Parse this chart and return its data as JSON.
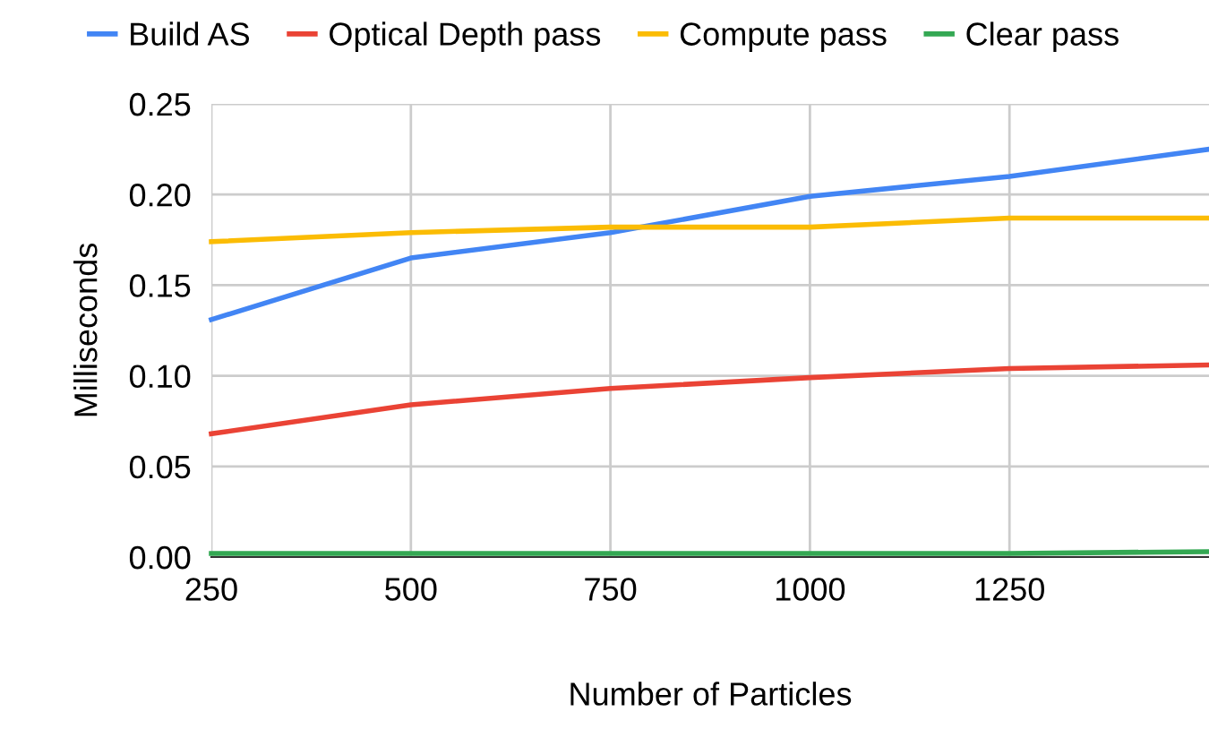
{
  "chart_data": {
    "type": "line",
    "xlabel": "Number of Particles",
    "ylabel": "Milliseconds",
    "x": [
      250,
      500,
      750,
      1000,
      1250,
      1500
    ],
    "series": [
      {
        "name": "Build AS",
        "color": "#4285f4",
        "values": [
          0.131,
          0.165,
          0.179,
          0.199,
          0.21,
          0.225
        ]
      },
      {
        "name": "Optical Depth pass",
        "color": "#ea4335",
        "values": [
          0.068,
          0.084,
          0.093,
          0.099,
          0.104,
          0.106
        ]
      },
      {
        "name": "Compute pass",
        "color": "#fbbc04",
        "values": [
          0.174,
          0.179,
          0.182,
          0.182,
          0.187,
          0.187
        ]
      },
      {
        "name": "Clear pass",
        "color": "#34a853",
        "values": [
          0.002,
          0.002,
          0.002,
          0.002,
          0.002,
          0.003
        ]
      }
    ],
    "xlim": [
      250,
      1500
    ],
    "xticks": [
      250,
      500,
      750,
      1000,
      1250
    ],
    "ylim": [
      0,
      0.25
    ],
    "yticks": [
      {
        "value": 0,
        "label": "0.00"
      },
      {
        "value": 0.05,
        "label": "0.05"
      },
      {
        "value": 0.1,
        "label": "0.10"
      },
      {
        "value": 0.15,
        "label": "0.15"
      },
      {
        "value": 0.2,
        "label": "0.20"
      },
      {
        "value": 0.25,
        "label": "0.25"
      }
    ],
    "grid": true,
    "legend": "top",
    "marker": "none",
    "line_style": "solid"
  }
}
